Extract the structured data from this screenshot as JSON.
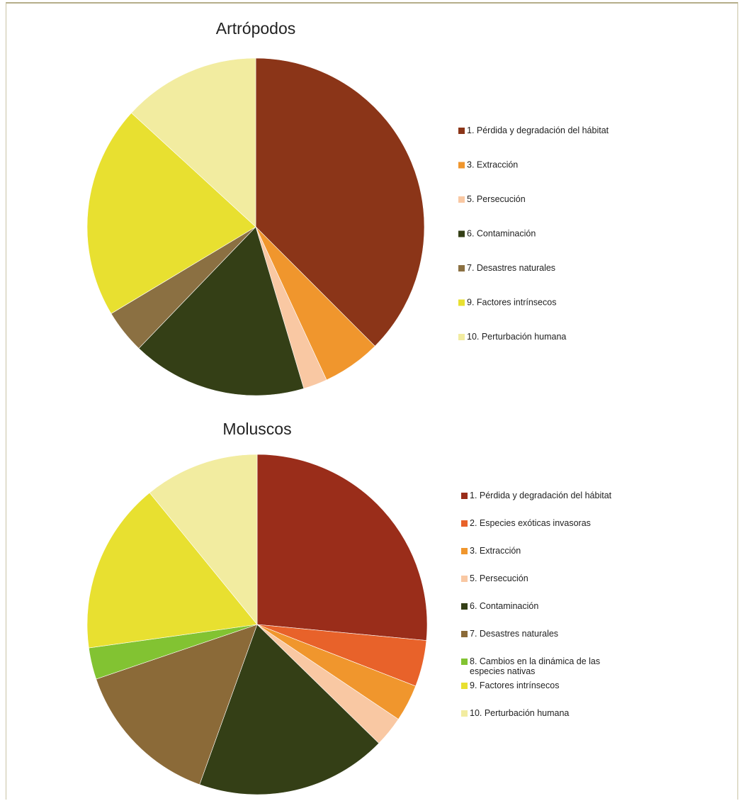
{
  "chart_data": [
    {
      "type": "pie",
      "title": "Artrópodos",
      "legend_position": "right",
      "slices": [
        {
          "label": "1. Pérdida y degradación del hábitat",
          "value": 37.5,
          "color": "#8b3518"
        },
        {
          "label": "3. Extracción",
          "value": 5.6,
          "color": "#f0962d"
        },
        {
          "label": "5. Persecución",
          "value": 2.3,
          "color": "#f9c8a3"
        },
        {
          "label": "6. Contaminación",
          "value": 16.8,
          "color": "#343f16"
        },
        {
          "label": "7. Desastres naturales",
          "value": 4.2,
          "color": "#8b7042"
        },
        {
          "label": "9. Factores intrínsecos",
          "value": 20.4,
          "color": "#e8e030"
        },
        {
          "label": "10. Perturbación humana",
          "value": 13.2,
          "color": "#f2eca0"
        }
      ]
    },
    {
      "type": "pie",
      "title": "Moluscos",
      "legend_position": "right",
      "slices": [
        {
          "label": "1. Pérdida y degradación del hábitat",
          "value": 26.5,
          "color": "#9a2d1a"
        },
        {
          "label": "2. Especies exóticas invasoras",
          "value": 4.4,
          "color": "#e8622a"
        },
        {
          "label": "3. Extracción",
          "value": 3.5,
          "color": "#f0962d"
        },
        {
          "label": "5. Persecución",
          "value": 2.9,
          "color": "#f9c8a3"
        },
        {
          "label": "6. Contaminación",
          "value": 18.2,
          "color": "#343f16"
        },
        {
          "label": "7. Desastres naturales",
          "value": 14.3,
          "color": "#8b6a38"
        },
        {
          "label": "8. Cambios en la dinámica de las especies nativas",
          "value": 3.0,
          "color": "#82c332"
        },
        {
          "label": "9. Factores intrínsecos",
          "value": 16.3,
          "color": "#e8e030"
        },
        {
          "label": "10. Perturbación humana",
          "value": 10.9,
          "color": "#f2eca0"
        }
      ]
    }
  ]
}
